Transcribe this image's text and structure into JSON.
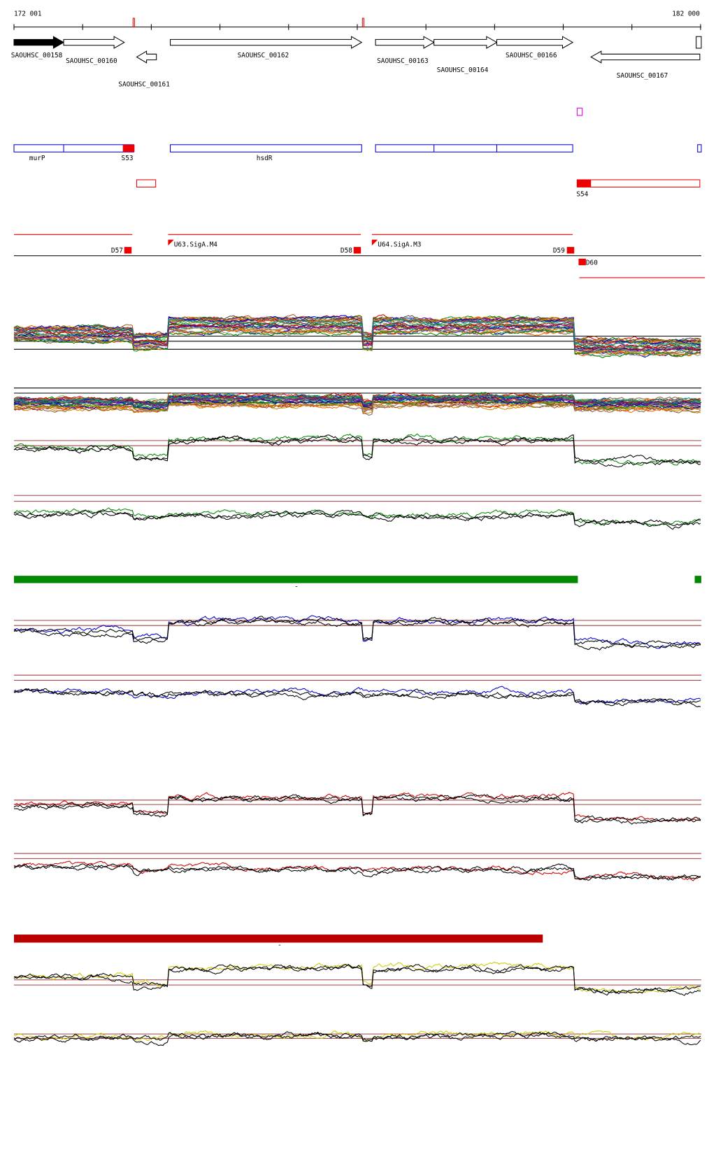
{
  "ruler": {
    "start": "172 001",
    "end": "182 000"
  },
  "genes": [
    {
      "label": "SAOUHSC_00158"
    },
    {
      "label": "SAOUHSC_00160"
    },
    {
      "label": "SAOUHSC_00161"
    },
    {
      "label": "SAOUHSC_00162"
    },
    {
      "label": "SAOUHSC_00163"
    },
    {
      "label": "SAOUHSC_00164"
    },
    {
      "label": "SAOUHSC_00166"
    },
    {
      "label": "SAOUHSC_00167"
    }
  ],
  "operons": [
    {
      "label": "murP"
    },
    {
      "label": "S53"
    },
    {
      "label": "hsdR"
    },
    {
      "label": "S54"
    }
  ],
  "segments": [
    {
      "label": "D57"
    },
    {
      "label": "U63.SigA.M4"
    },
    {
      "label": "D58"
    },
    {
      "label": "U64.SigA.M3"
    },
    {
      "label": "D59"
    },
    {
      "label": "D60"
    }
  ],
  "markers": [
    {
      "label": "-"
    },
    {
      "label": "-"
    }
  ]
}
